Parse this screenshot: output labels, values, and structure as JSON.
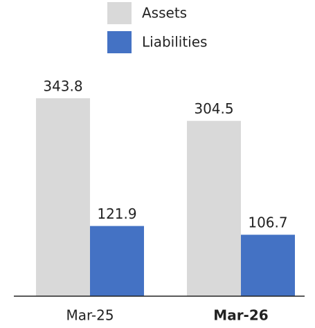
{
  "chart_data": {
    "type": "bar",
    "categories": [
      "Mar-25",
      "Mar-26"
    ],
    "bold_category_index": 1,
    "series": [
      {
        "name": "Assets",
        "color": "#d9d9d9",
        "values": [
          343.8,
          304.5
        ]
      },
      {
        "name": "Liabilities",
        "color": "#4472c4",
        "values": [
          121.9,
          106.7
        ]
      }
    ]
  }
}
